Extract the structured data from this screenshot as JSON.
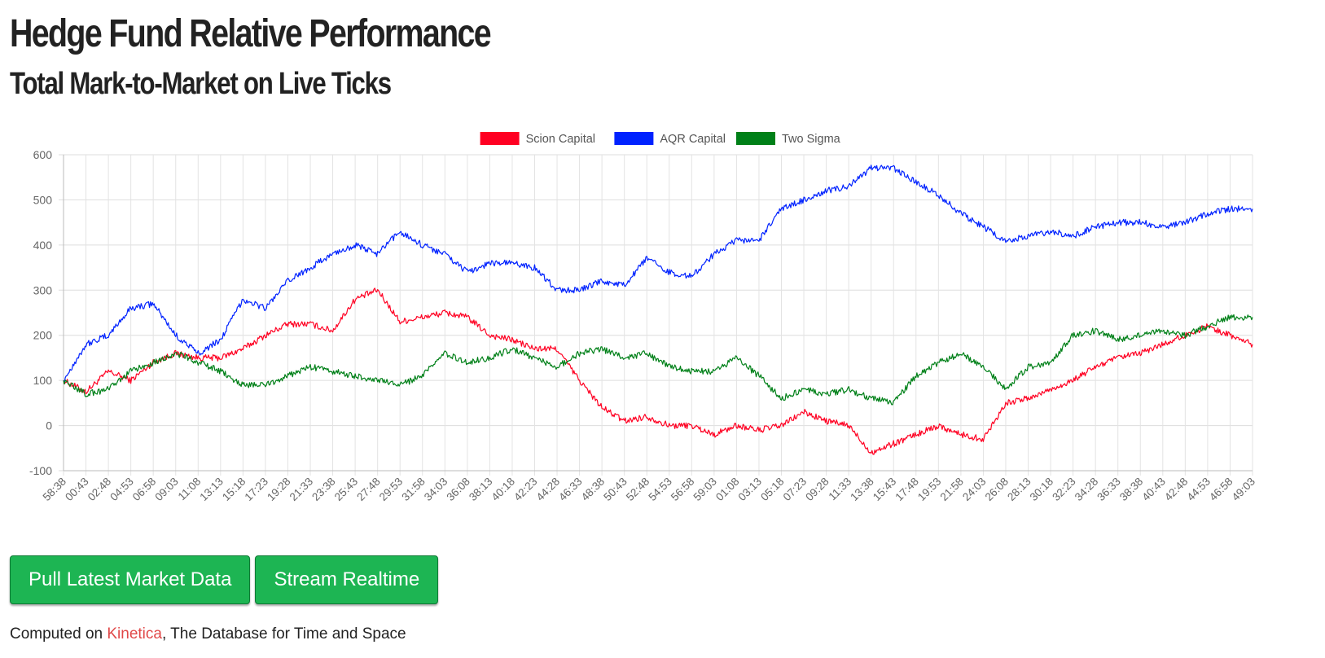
{
  "header": {
    "title": "Hedge Fund Relative Performance",
    "subtitle": "Total Mark-to-Market on Live Ticks"
  },
  "buttons": {
    "pull_label": "Pull Latest Market Data",
    "stream_label": "Stream Realtime"
  },
  "footer": {
    "prefix": "Computed on ",
    "brand": "Kinetica",
    "suffix": ", The Database for Time and Space"
  },
  "colors": {
    "button": "#1db553",
    "brand_link": "#e04848"
  },
  "chart_data": {
    "type": "line",
    "title": "",
    "xlabel": "",
    "ylabel": "",
    "ylim": [
      -100,
      600
    ],
    "yticks": [
      600,
      500,
      400,
      300,
      200,
      100,
      0,
      -100
    ],
    "grid": true,
    "legend_position": "top-center",
    "categories": [
      "58:38",
      "00:43",
      "02:48",
      "04:53",
      "06:58",
      "09:03",
      "11:08",
      "13:13",
      "15:18",
      "17:23",
      "19:28",
      "21:33",
      "23:38",
      "25:43",
      "27:48",
      "29:53",
      "31:58",
      "34:03",
      "36:08",
      "38:13",
      "40:18",
      "42:23",
      "44:28",
      "46:33",
      "48:38",
      "50:43",
      "52:48",
      "54:53",
      "56:58",
      "59:03",
      "01:08",
      "03:13",
      "05:18",
      "07:23",
      "09:28",
      "11:33",
      "13:38",
      "15:43",
      "17:48",
      "19:53",
      "21:58",
      "24:03",
      "26:08",
      "28:13",
      "30:18",
      "32:23",
      "34:28",
      "36:33",
      "38:38",
      "40:43",
      "42:48",
      "44:53",
      "46:58",
      "49:03"
    ],
    "series": [
      {
        "name": "Scion Capital",
        "color": "#ff0022",
        "values": [
          100,
          75,
          120,
          100,
          140,
          160,
          150,
          150,
          170,
          200,
          225,
          225,
          210,
          280,
          300,
          230,
          240,
          250,
          240,
          200,
          190,
          170,
          170,
          100,
          40,
          10,
          20,
          0,
          0,
          -20,
          0,
          -10,
          0,
          30,
          10,
          0,
          -60,
          -40,
          -20,
          0,
          -20,
          -30,
          50,
          60,
          80,
          100,
          130,
          150,
          160,
          180,
          200,
          220,
          200,
          180
        ]
      },
      {
        "name": "AQR Capital",
        "color": "#0022ff",
        "values": [
          100,
          180,
          200,
          260,
          270,
          200,
          160,
          190,
          280,
          260,
          320,
          350,
          380,
          400,
          380,
          430,
          400,
          380,
          340,
          360,
          360,
          350,
          300,
          300,
          320,
          310,
          370,
          340,
          330,
          380,
          410,
          410,
          480,
          500,
          520,
          530,
          570,
          570,
          540,
          510,
          470,
          440,
          410,
          420,
          430,
          420,
          440,
          450,
          450,
          440,
          450,
          470,
          480,
          480
        ]
      },
      {
        "name": "Two Sigma",
        "color": "#008018",
        "values": [
          100,
          70,
          80,
          120,
          140,
          160,
          140,
          120,
          90,
          90,
          110,
          130,
          120,
          110,
          100,
          90,
          110,
          160,
          140,
          150,
          170,
          150,
          130,
          160,
          170,
          150,
          160,
          130,
          120,
          120,
          150,
          110,
          60,
          80,
          70,
          80,
          60,
          50,
          110,
          140,
          160,
          130,
          80,
          130,
          140,
          200,
          210,
          190,
          200,
          210,
          200,
          220,
          240,
          240
        ]
      }
    ]
  }
}
